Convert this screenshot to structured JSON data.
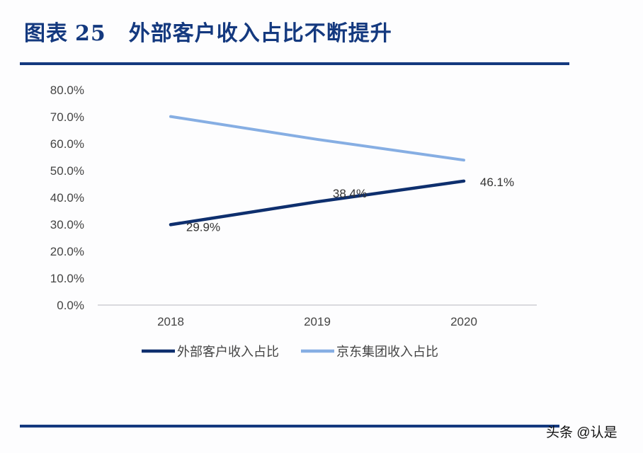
{
  "header": {
    "figure_label": "图表",
    "figure_number": "25",
    "title": "外部客户收入占比不断提升"
  },
  "watermark": "头条 @认是",
  "colors": {
    "accent": "#14397f",
    "series_external": "#0e2f6e",
    "series_jd": "#86aee3"
  },
  "chart_data": {
    "type": "line",
    "title": "外部客户收入占比不断提升",
    "xlabel": "",
    "ylabel": "",
    "categories": [
      "2018",
      "2019",
      "2020"
    ],
    "y_ticks": [
      "0.0%",
      "10.0%",
      "20.0%",
      "30.0%",
      "40.0%",
      "50.0%",
      "60.0%",
      "70.0%",
      "80.0%"
    ],
    "ylim": [
      0,
      80
    ],
    "grid": false,
    "legend_position": "bottom",
    "series": [
      {
        "name": "外部客户收入占比",
        "values": [
          29.9,
          38.4,
          46.1
        ],
        "labels": [
          "29.9%",
          "38.4%",
          "46.1%"
        ],
        "color": "#0e2f6e"
      },
      {
        "name": "京东集团收入占比",
        "values": [
          70.1,
          61.6,
          53.9
        ],
        "labels": [],
        "color": "#86aee3"
      }
    ]
  }
}
